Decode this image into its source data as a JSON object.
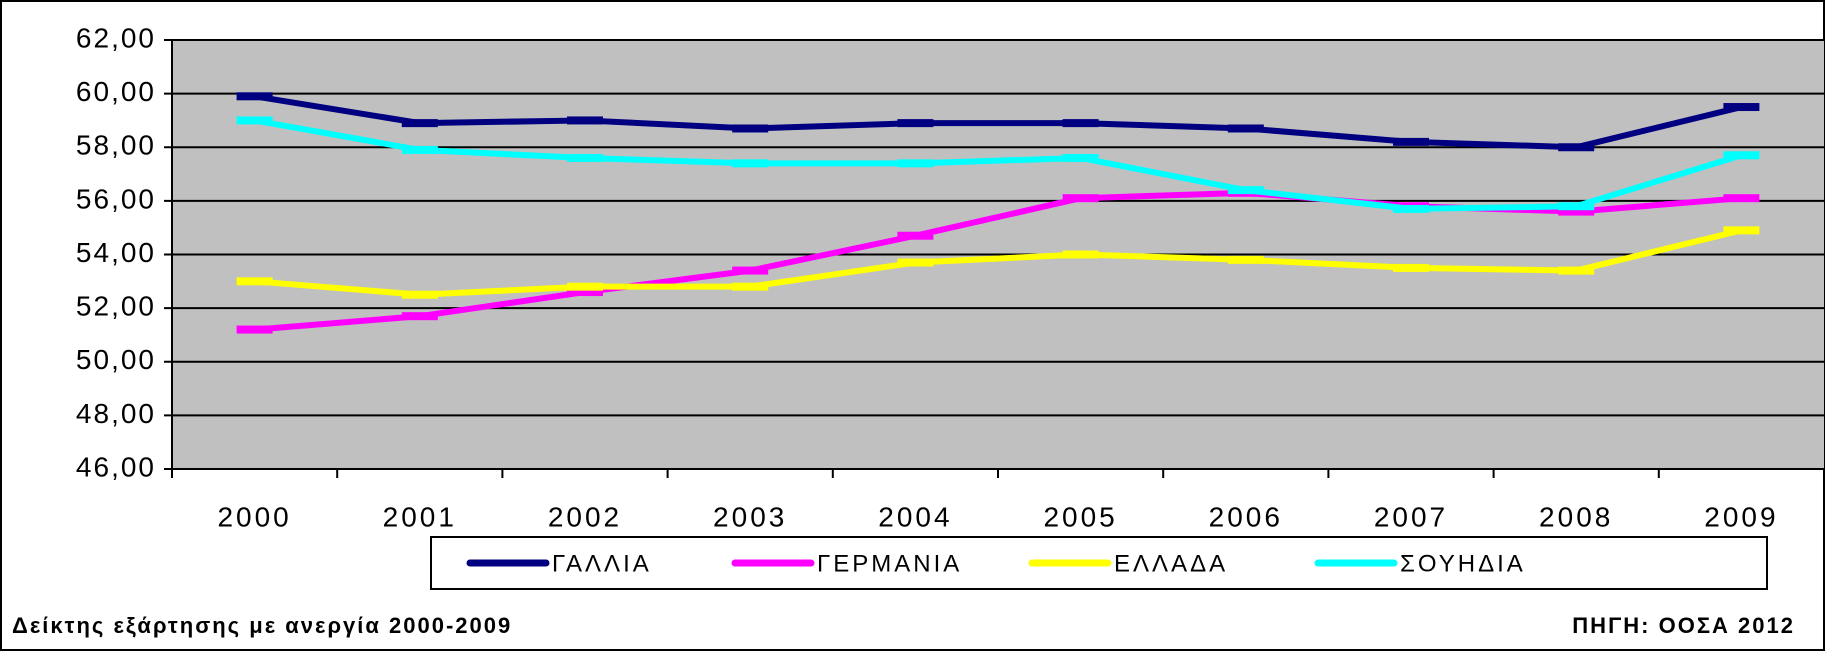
{
  "chart_data": {
    "type": "line",
    "categories": [
      "2000",
      "2001",
      "2002",
      "2003",
      "2004",
      "2005",
      "2006",
      "2007",
      "2008",
      "2009"
    ],
    "series": [
      {
        "name": "ΓΑΛΛΙΑ",
        "color": "#000080",
        "values": [
          59.9,
          58.9,
          59.0,
          58.7,
          58.9,
          58.9,
          58.7,
          58.2,
          58.0,
          59.5
        ]
      },
      {
        "name": "ΓΕΡΜΑΝΙΑ",
        "color": "#ff00ff",
        "values": [
          51.2,
          51.7,
          52.6,
          53.4,
          54.7,
          56.1,
          56.3,
          55.8,
          55.6,
          56.1
        ]
      },
      {
        "name": "ΕΛΛΑΔΑ",
        "color": "#ffff00",
        "values": [
          53.0,
          52.5,
          52.8,
          52.8,
          53.7,
          54.0,
          53.8,
          53.5,
          53.4,
          54.9
        ]
      },
      {
        "name": "ΣΟΥΗΔΙΑ",
        "color": "#00ffff",
        "values": [
          59.0,
          57.9,
          57.6,
          57.4,
          57.4,
          57.6,
          56.4,
          55.7,
          55.8,
          57.7
        ]
      }
    ],
    "ylim": [
      46,
      62
    ],
    "yticks": [
      {
        "value": 46,
        "label": "46,00"
      },
      {
        "value": 48,
        "label": "48,00"
      },
      {
        "value": 50,
        "label": "50,00"
      },
      {
        "value": 52,
        "label": "52,00"
      },
      {
        "value": 54,
        "label": "54,00"
      },
      {
        "value": 56,
        "label": "56,00"
      },
      {
        "value": 58,
        "label": "58,00"
      },
      {
        "value": 60,
        "label": "60,00"
      },
      {
        "value": 62,
        "label": "62,00"
      }
    ],
    "grid": true,
    "legend": "bottom",
    "plot_background": "#c0c0c0",
    "footer_left": "Δείκτης εξάρτησης με ανεργία 2000-2009",
    "footer_right": "ΠΗΓΗ: ΟΟΣΑ 2012"
  }
}
